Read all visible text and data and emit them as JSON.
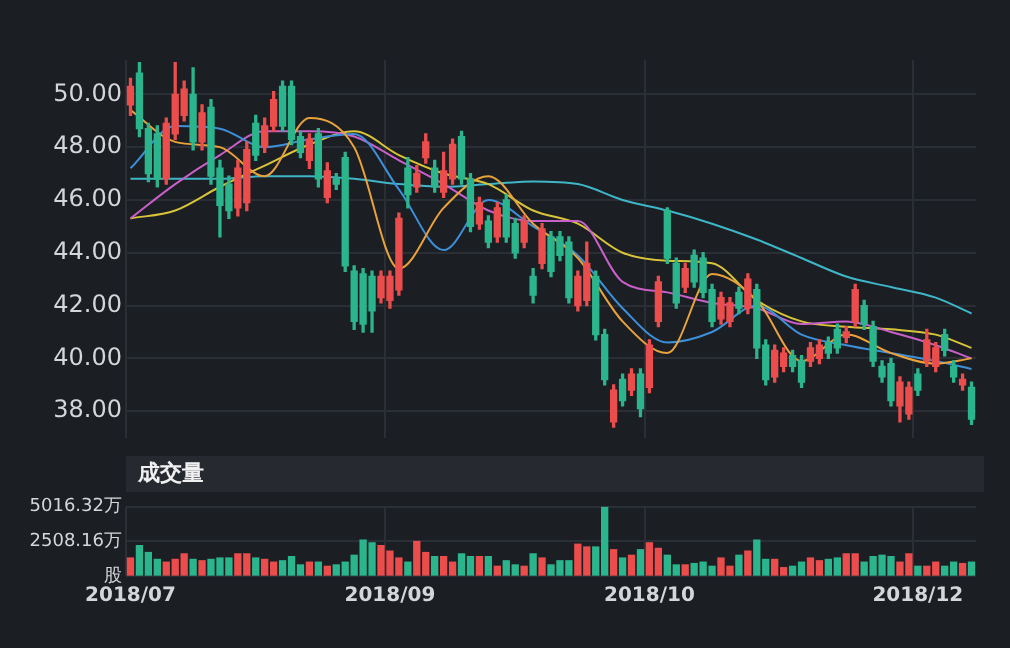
{
  "chart_data": [
    {
      "type": "candlestick",
      "tick_labels": "y",
      "grid": true,
      "ylim": [
        37,
        51.3
      ],
      "yticks": [
        {
          "value": 38,
          "label": "38.00"
        },
        {
          "value": 40,
          "label": "40.00"
        },
        {
          "value": 42,
          "label": "42.00"
        },
        {
          "value": 44,
          "label": "44.00"
        },
        {
          "value": 46,
          "label": "46.00"
        },
        {
          "value": 48,
          "label": "48.00"
        },
        {
          "value": 50,
          "label": "50.00"
        }
      ],
      "categories": [
        "2018/07",
        null,
        null,
        null,
        null,
        null,
        null,
        null,
        null,
        null,
        null,
        null,
        null,
        null,
        null,
        null,
        null,
        null,
        null,
        null,
        null,
        null,
        null,
        null,
        null,
        null,
        null,
        null,
        null,
        "2018/09",
        null,
        null,
        null,
        null,
        null,
        null,
        null,
        null,
        null,
        null,
        null,
        null,
        null,
        null,
        null,
        null,
        null,
        null,
        null,
        null,
        null,
        null,
        null,
        null,
        null,
        null,
        null,
        null,
        "2018/10",
        null,
        null,
        null,
        null,
        null,
        null,
        null,
        null,
        null,
        null,
        null,
        null,
        null,
        null,
        null,
        null,
        null,
        null,
        null,
        null,
        null,
        null,
        null,
        null,
        null,
        null,
        null,
        null,
        null,
        "2018/12",
        null,
        null,
        null,
        null,
        null,
        null
      ],
      "ohlc": [
        [
          49.6,
          50.6,
          49.2,
          50.3
        ],
        [
          50.8,
          51.2,
          48.4,
          48.7
        ],
        [
          48.7,
          48.9,
          46.7,
          47.0
        ],
        [
          48.5,
          48.8,
          46.5,
          46.8
        ],
        [
          46.8,
          49.1,
          46.6,
          48.9
        ],
        [
          48.5,
          51.2,
          48.3,
          50.0
        ],
        [
          49.2,
          50.5,
          49.0,
          50.2
        ],
        [
          50.0,
          51.0,
          47.9,
          48.2
        ],
        [
          48.2,
          49.6,
          47.9,
          49.3
        ],
        [
          49.5,
          49.8,
          46.6,
          46.9
        ],
        [
          47.2,
          47.5,
          44.6,
          45.8
        ],
        [
          46.6,
          46.9,
          45.3,
          45.6
        ],
        [
          45.7,
          47.5,
          45.4,
          47.2
        ],
        [
          45.9,
          48.2,
          45.6,
          47.9
        ],
        [
          48.9,
          49.2,
          47.5,
          47.7
        ],
        [
          48.0,
          49.1,
          47.8,
          48.8
        ],
        [
          48.8,
          50.1,
          48.6,
          49.8
        ],
        [
          50.3,
          50.5,
          48.6,
          48.8
        ],
        [
          50.3,
          50.5,
          48.1,
          48.3
        ],
        [
          48.4,
          48.6,
          47.6,
          47.8
        ],
        [
          47.5,
          48.5,
          47.2,
          48.3
        ],
        [
          48.5,
          48.7,
          46.5,
          46.8
        ],
        [
          46.1,
          47.4,
          45.9,
          47.1
        ],
        [
          46.8,
          47.0,
          46.4,
          46.6
        ],
        [
          47.6,
          47.8,
          43.3,
          43.5
        ],
        [
          43.3,
          43.5,
          41.1,
          41.4
        ],
        [
          43.2,
          43.4,
          41.0,
          41.3
        ],
        [
          43.1,
          43.3,
          41.0,
          41.8
        ],
        [
          42.3,
          43.3,
          42.1,
          43.1
        ],
        [
          42.2,
          43.3,
          41.9,
          43.1
        ],
        [
          42.6,
          45.5,
          42.4,
          45.3
        ],
        [
          47.2,
          47.6,
          45.7,
          46.2
        ],
        [
          46.5,
          47.3,
          46.3,
          47.0
        ],
        [
          47.6,
          48.5,
          47.4,
          48.2
        ],
        [
          47.2,
          47.5,
          46.3,
          46.5
        ],
        [
          46.3,
          47.8,
          46.1,
          47.1
        ],
        [
          46.8,
          48.3,
          46.6,
          48.1
        ],
        [
          48.4,
          48.6,
          46.6,
          46.8
        ],
        [
          46.8,
          47.0,
          44.8,
          45.0
        ],
        [
          45.1,
          46.1,
          44.9,
          45.9
        ],
        [
          45.2,
          45.4,
          44.2,
          44.4
        ],
        [
          44.6,
          45.9,
          44.4,
          45.7
        ],
        [
          46.0,
          46.2,
          44.4,
          44.6
        ],
        [
          45.1,
          45.3,
          43.8,
          44.0
        ],
        [
          44.4,
          45.4,
          44.2,
          45.2
        ],
        [
          43.1,
          43.4,
          42.1,
          42.4
        ],
        [
          43.6,
          45.1,
          43.4,
          44.9
        ],
        [
          44.6,
          44.8,
          43.1,
          43.3
        ],
        [
          44.6,
          44.8,
          43.7,
          43.9
        ],
        [
          44.4,
          44.6,
          42.1,
          42.3
        ],
        [
          42.0,
          43.3,
          41.8,
          43.1
        ],
        [
          42.2,
          44.4,
          42.0,
          43.6
        ],
        [
          43.1,
          43.3,
          40.7,
          40.9
        ],
        [
          40.9,
          41.1,
          39.0,
          39.2
        ],
        [
          37.6,
          39.0,
          37.4,
          38.8
        ],
        [
          39.2,
          39.4,
          38.2,
          38.4
        ],
        [
          38.8,
          39.6,
          38.6,
          39.4
        ],
        [
          39.4,
          39.6,
          37.8,
          38.1
        ],
        [
          38.9,
          40.7,
          38.7,
          40.5
        ],
        [
          41.4,
          43.1,
          41.2,
          42.9
        ],
        [
          45.6,
          45.7,
          43.6,
          43.8
        ],
        [
          43.6,
          43.8,
          41.9,
          42.1
        ],
        [
          42.7,
          43.6,
          42.5,
          43.4
        ],
        [
          43.9,
          44.1,
          42.7,
          42.9
        ],
        [
          43.8,
          44.0,
          42.3,
          42.5
        ],
        [
          42.6,
          42.8,
          41.2,
          41.4
        ],
        [
          41.5,
          42.5,
          41.3,
          42.3
        ],
        [
          41.4,
          42.3,
          41.2,
          42.1
        ],
        [
          42.5,
          42.7,
          41.7,
          41.9
        ],
        [
          41.9,
          43.2,
          41.7,
          43.0
        ],
        [
          42.6,
          42.8,
          40.0,
          40.4
        ],
        [
          40.5,
          40.7,
          39.0,
          39.2
        ],
        [
          39.3,
          40.5,
          39.1,
          40.3
        ],
        [
          39.7,
          40.4,
          39.5,
          40.2
        ],
        [
          40.1,
          40.3,
          39.5,
          39.7
        ],
        [
          39.9,
          40.1,
          38.9,
          39.1
        ],
        [
          39.9,
          40.6,
          39.7,
          40.4
        ],
        [
          40.0,
          40.7,
          39.8,
          40.5
        ],
        [
          40.6,
          40.8,
          40.0,
          40.2
        ],
        [
          41.1,
          41.3,
          40.2,
          40.4
        ],
        [
          40.8,
          41.2,
          40.6,
          41.0
        ],
        [
          41.4,
          42.8,
          41.2,
          42.6
        ],
        [
          42.0,
          42.2,
          41.1,
          41.3
        ],
        [
          41.2,
          41.4,
          39.7,
          39.9
        ],
        [
          39.7,
          39.9,
          39.1,
          39.3
        ],
        [
          39.8,
          40.0,
          38.2,
          38.4
        ],
        [
          38.2,
          39.3,
          37.6,
          39.1
        ],
        [
          37.9,
          39.1,
          37.7,
          38.9
        ],
        [
          39.4,
          39.6,
          38.6,
          38.8
        ],
        [
          39.9,
          41.1,
          39.7,
          40.7
        ],
        [
          39.7,
          40.6,
          39.5,
          40.4
        ],
        [
          40.9,
          41.1,
          40.1,
          40.3
        ],
        [
          39.7,
          39.9,
          39.1,
          39.3
        ],
        [
          39.0,
          39.4,
          38.8,
          39.2
        ],
        [
          38.9,
          39.1,
          37.5,
          37.7
        ]
      ],
      "colors": [
        "#eb4d4d",
        "#2bb58d",
        "#2bb58d",
        "#2bb58d",
        "#eb4d4d",
        "#eb4d4d",
        "#eb4d4d",
        "#2bb58d",
        "#eb4d4d",
        "#2bb58d",
        "#2bb58d",
        "#2bb58d",
        "#eb4d4d",
        "#eb4d4d",
        "#2bb58d",
        "#eb4d4d",
        "#eb4d4d",
        "#2bb58d",
        "#2bb58d",
        "#2bb58d",
        "#eb4d4d",
        "#2bb58d",
        "#eb4d4d",
        "#2bb58d",
        "#2bb58d",
        "#2bb58d",
        "#2bb58d",
        "#2bb58d",
        "#eb4d4d",
        "#eb4d4d",
        "#eb4d4d",
        "#2bb58d",
        "#eb4d4d",
        "#eb4d4d",
        "#2bb58d",
        "#eb4d4d",
        "#eb4d4d",
        "#2bb58d",
        "#2bb58d",
        "#eb4d4d",
        "#2bb58d",
        "#eb4d4d",
        "#2bb58d",
        "#2bb58d",
        "#eb4d4d",
        "#2bb58d",
        "#eb4d4d",
        "#2bb58d",
        "#2bb58d",
        "#2bb58d",
        "#eb4d4d",
        "#eb4d4d",
        "#2bb58d",
        "#2bb58d",
        "#eb4d4d",
        "#2bb58d",
        "#eb4d4d",
        "#2bb58d",
        "#eb4d4d",
        "#eb4d4d",
        "#2bb58d",
        "#2bb58d",
        "#eb4d4d",
        "#2bb58d",
        "#2bb58d",
        "#2bb58d",
        "#eb4d4d",
        "#eb4d4d",
        "#2bb58d",
        "#eb4d4d",
        "#2bb58d",
        "#2bb58d",
        "#eb4d4d",
        "#eb4d4d",
        "#2bb58d",
        "#2bb58d",
        "#eb4d4d",
        "#eb4d4d",
        "#2bb58d",
        "#2bb58d",
        "#eb4d4d",
        "#eb4d4d",
        "#2bb58d",
        "#2bb58d",
        "#2bb58d",
        "#2bb58d",
        "#eb4d4d",
        "#eb4d4d",
        "#2bb58d",
        "#eb4d4d",
        "#eb4d4d",
        "#2bb58d",
        "#2bb58d",
        "#eb4d4d",
        "#2bb58d"
      ],
      "series": [
        {
          "type": "line",
          "color": "#e9a23b",
          "values": [
            49.4,
            null,
            null,
            null,
            null,
            48.2,
            null,
            null,
            null,
            null,
            48.0,
            null,
            null,
            null,
            null,
            46.9,
            null,
            null,
            null,
            null,
            49.1,
            null,
            null,
            null,
            null,
            48.0,
            null,
            null,
            null,
            null,
            43.4,
            null,
            null,
            null,
            null,
            45.7,
            null,
            null,
            null,
            null,
            46.9,
            null,
            null,
            null,
            null,
            45.1,
            null,
            null,
            null,
            null,
            43.8,
            null,
            null,
            null,
            null,
            41.4,
            null,
            null,
            null,
            null,
            40.2,
            null,
            null,
            null,
            null,
            43.2,
            null,
            null,
            null,
            null,
            42.2,
            null,
            null,
            null,
            null,
            39.9,
            null,
            null,
            null,
            null,
            40.9,
            null,
            null,
            null,
            null,
            40.2,
            null,
            null,
            null,
            null,
            39.8,
            null,
            null,
            null,
            40.0
          ]
        },
        {
          "type": "line",
          "color": "#3d8fd8",
          "values": [
            47.2,
            null,
            null,
            null,
            null,
            48.8,
            null,
            null,
            null,
            null,
            48.7,
            null,
            null,
            null,
            null,
            48.0,
            null,
            null,
            null,
            null,
            48.3,
            null,
            null,
            null,
            null,
            48.5,
            null,
            null,
            null,
            null,
            46.4,
            null,
            null,
            null,
            null,
            44.1,
            null,
            null,
            null,
            null,
            46.0,
            null,
            null,
            null,
            null,
            45.0,
            null,
            null,
            null,
            null,
            43.9,
            null,
            null,
            null,
            null,
            41.9,
            null,
            null,
            null,
            null,
            40.6,
            null,
            null,
            null,
            null,
            41.0,
            null,
            null,
            null,
            null,
            42.0,
            null,
            null,
            null,
            null,
            40.9,
            null,
            null,
            null,
            null,
            40.5,
            null,
            null,
            null,
            null,
            40.2,
            null,
            null,
            null,
            null,
            39.9,
            null,
            null,
            null,
            39.6
          ]
        },
        {
          "type": "line",
          "color": "#c95fc9",
          "values": [
            45.3,
            null,
            null,
            null,
            null,
            46.6,
            null,
            null,
            null,
            null,
            47.7,
            null,
            null,
            null,
            null,
            48.6,
            null,
            null,
            null,
            null,
            48.6,
            null,
            null,
            null,
            null,
            48.4,
            null,
            null,
            null,
            null,
            47.5,
            null,
            null,
            null,
            null,
            46.6,
            null,
            null,
            null,
            null,
            45.6,
            null,
            null,
            null,
            null,
            45.2,
            null,
            null,
            null,
            null,
            45.2,
            null,
            null,
            null,
            null,
            42.9,
            null,
            null,
            null,
            null,
            42.5,
            null,
            null,
            null,
            null,
            42.1,
            null,
            null,
            null,
            null,
            41.9,
            null,
            null,
            null,
            null,
            41.3,
            null,
            null,
            null,
            null,
            41.4,
            null,
            null,
            null,
            null,
            41.0,
            null,
            null,
            null,
            null,
            40.5,
            null,
            null,
            null,
            40.0
          ]
        },
        {
          "type": "line",
          "color": "#d7c43a",
          "values": [
            45.3,
            null,
            null,
            null,
            null,
            45.6,
            null,
            null,
            null,
            null,
            46.5,
            null,
            null,
            null,
            null,
            47.3,
            null,
            null,
            null,
            null,
            48.1,
            null,
            null,
            null,
            null,
            48.6,
            null,
            null,
            null,
            null,
            47.7,
            null,
            null,
            null,
            null,
            47.0,
            null,
            null,
            null,
            null,
            46.6,
            null,
            null,
            null,
            null,
            45.6,
            null,
            null,
            null,
            null,
            45.1,
            null,
            null,
            null,
            null,
            44.0,
            null,
            null,
            null,
            null,
            43.7,
            null,
            null,
            null,
            null,
            43.6,
            null,
            null,
            null,
            null,
            42.2,
            null,
            null,
            null,
            null,
            41.4,
            null,
            null,
            null,
            null,
            41.2,
            null,
            null,
            null,
            null,
            41.1,
            null,
            null,
            null,
            null,
            40.9,
            null,
            null,
            null,
            40.4
          ]
        },
        {
          "type": "line",
          "color": "#3fb6c8",
          "values": [
            46.8,
            null,
            null,
            null,
            null,
            46.8,
            null,
            null,
            null,
            null,
            46.8,
            null,
            null,
            null,
            null,
            46.9,
            null,
            null,
            null,
            null,
            46.9,
            null,
            null,
            null,
            null,
            46.8,
            null,
            null,
            null,
            null,
            46.6,
            null,
            null,
            null,
            null,
            46.5,
            null,
            null,
            null,
            null,
            46.6,
            null,
            null,
            null,
            null,
            46.7,
            null,
            null,
            null,
            null,
            46.6,
            null,
            null,
            null,
            null,
            46.0,
            null,
            null,
            null,
            null,
            45.6,
            null,
            null,
            null,
            null,
            45.1,
            null,
            null,
            null,
            null,
            44.5,
            null,
            null,
            null,
            null,
            43.8,
            null,
            null,
            null,
            null,
            43.1,
            null,
            null,
            null,
            null,
            42.7,
            null,
            null,
            null,
            null,
            42.3,
            null,
            null,
            null,
            41.7
          ]
        }
      ]
    },
    {
      "type": "bar",
      "title": "成交量",
      "grid": true,
      "ylim": [
        0,
        5016.32
      ],
      "yticks": [
        {
          "value": 0,
          "label": "股"
        },
        {
          "value": 2508.16,
          "label": "2508.16万"
        },
        {
          "value": 5016.32,
          "label": "5016.32万"
        }
      ],
      "categories": [
        "2018/07",
        null,
        null,
        null,
        null,
        null,
        null,
        null,
        null,
        null,
        null,
        null,
        null,
        null,
        null,
        null,
        null,
        null,
        null,
        null,
        null,
        null,
        null,
        null,
        null,
        null,
        null,
        null,
        null,
        "2018/09",
        null,
        null,
        null,
        null,
        null,
        null,
        null,
        null,
        null,
        null,
        null,
        null,
        null,
        null,
        null,
        null,
        null,
        null,
        null,
        null,
        null,
        null,
        null,
        null,
        null,
        null,
        null,
        null,
        "2018/10",
        null,
        null,
        null,
        null,
        null,
        null,
        null,
        null,
        null,
        null,
        null,
        null,
        null,
        null,
        null,
        null,
        null,
        null,
        null,
        null,
        null,
        null,
        null,
        null,
        null,
        null,
        null,
        null,
        null,
        "2018/12",
        null,
        null,
        null,
        null,
        null,
        null
      ],
      "values": [
        1300,
        2200,
        1700,
        1200,
        1000,
        1200,
        1600,
        1200,
        1100,
        1200,
        1300,
        1300,
        1600,
        1600,
        1300,
        1200,
        1000,
        1100,
        1400,
        800,
        1000,
        1000,
        700,
        800,
        1000,
        1500,
        2600,
        2400,
        2200,
        1800,
        1300,
        1000,
        2500,
        1700,
        1400,
        1400,
        1000,
        1600,
        1400,
        1400,
        1400,
        700,
        1100,
        800,
        700,
        1600,
        1300,
        800,
        1100,
        1100,
        2300,
        2100,
        2100,
        5000,
        1900,
        1300,
        1500,
        1900,
        2400,
        2000,
        1500,
        800,
        800,
        900,
        1000,
        700,
        1300,
        700,
        1500,
        1800,
        2600,
        1200,
        1200,
        600,
        700,
        1000,
        1300,
        1100,
        1200,
        1300,
        1600,
        1600,
        1000,
        1400,
        1500,
        1400,
        1000,
        1600,
        700,
        700,
        1000,
        700,
        1000,
        900,
        1000
      ],
      "colors": [
        "#eb4d4d",
        "#2bb58d",
        "#2bb58d",
        "#2bb58d",
        "#eb4d4d",
        "#eb4d4d",
        "#eb4d4d",
        "#2bb58d",
        "#eb4d4d",
        "#2bb58d",
        "#2bb58d",
        "#2bb58d",
        "#eb4d4d",
        "#eb4d4d",
        "#2bb58d",
        "#eb4d4d",
        "#eb4d4d",
        "#2bb58d",
        "#2bb58d",
        "#2bb58d",
        "#eb4d4d",
        "#2bb58d",
        "#eb4d4d",
        "#2bb58d",
        "#2bb58d",
        "#2bb58d",
        "#2bb58d",
        "#2bb58d",
        "#eb4d4d",
        "#eb4d4d",
        "#eb4d4d",
        "#2bb58d",
        "#eb4d4d",
        "#eb4d4d",
        "#2bb58d",
        "#eb4d4d",
        "#eb4d4d",
        "#2bb58d",
        "#2bb58d",
        "#eb4d4d",
        "#2bb58d",
        "#eb4d4d",
        "#2bb58d",
        "#2bb58d",
        "#eb4d4d",
        "#2bb58d",
        "#eb4d4d",
        "#2bb58d",
        "#2bb58d",
        "#2bb58d",
        "#eb4d4d",
        "#eb4d4d",
        "#2bb58d",
        "#2bb58d",
        "#eb4d4d",
        "#2bb58d",
        "#eb4d4d",
        "#2bb58d",
        "#eb4d4d",
        "#eb4d4d",
        "#2bb58d",
        "#2bb58d",
        "#eb4d4d",
        "#2bb58d",
        "#2bb58d",
        "#2bb58d",
        "#eb4d4d",
        "#eb4d4d",
        "#2bb58d",
        "#eb4d4d",
        "#2bb58d",
        "#2bb58d",
        "#eb4d4d",
        "#eb4d4d",
        "#2bb58d",
        "#2bb58d",
        "#eb4d4d",
        "#eb4d4d",
        "#2bb58d",
        "#2bb58d",
        "#eb4d4d",
        "#eb4d4d",
        "#2bb58d",
        "#2bb58d",
        "#2bb58d",
        "#2bb58d",
        "#eb4d4d",
        "#eb4d4d",
        "#2bb58d",
        "#eb4d4d",
        "#eb4d4d",
        "#2bb58d",
        "#2bb58d",
        "#eb4d4d",
        "#2bb58d"
      ]
    }
  ]
}
